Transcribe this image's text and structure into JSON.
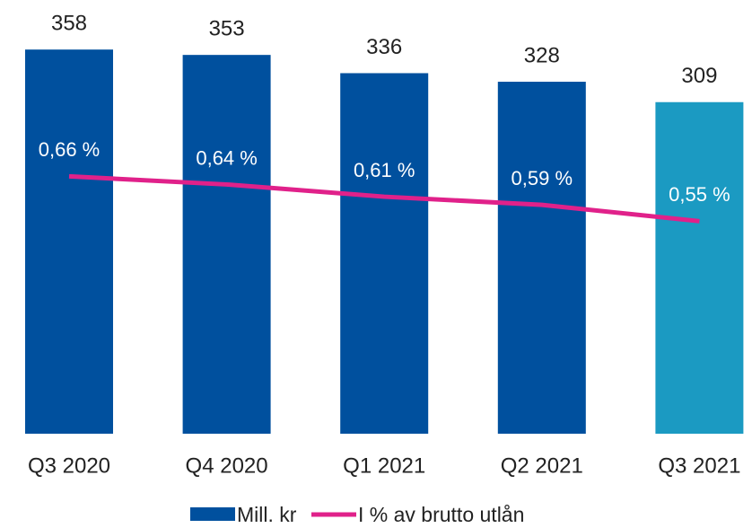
{
  "chart_data": {
    "type": "bar",
    "categories": [
      "Q3 2020",
      "Q4 2020",
      "Q1 2021",
      "Q2 2021",
      "Q3 2021"
    ],
    "ylim": [
      0,
      400
    ],
    "y2lim": [
      0,
      1
    ],
    "grid": false,
    "series": [
      {
        "name": "Mill. kr",
        "type": "bar",
        "colors": [
          "#00509e",
          "#00509e",
          "#00509e",
          "#00509e",
          "#1b9ac2"
        ],
        "values": [
          358,
          353,
          336,
          328,
          309
        ]
      },
      {
        "name": "I % av brutto utlån",
        "type": "line",
        "axis": "y2",
        "color": "#e0218a",
        "values": [
          0.66,
          0.64,
          0.61,
          0.59,
          0.55
        ],
        "value_labels": [
          "0,66 %",
          "0,64 %",
          "0,61 %",
          "0,59 %",
          "0,55 %"
        ]
      }
    ]
  }
}
